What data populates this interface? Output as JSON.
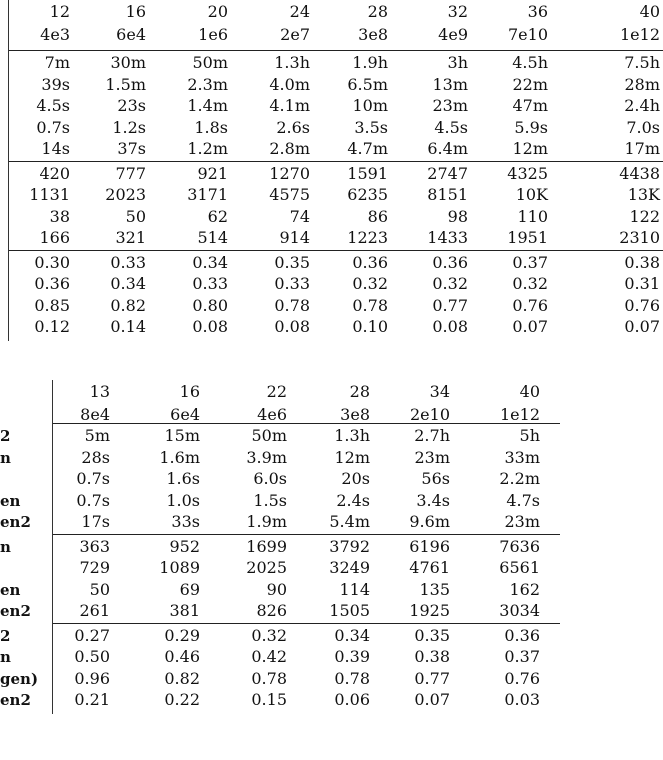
{
  "top_table": {
    "header_row1": [
      "12",
      "16",
      "20",
      "24",
      "28",
      "32",
      "36",
      "40"
    ],
    "header_row2": [
      "4e3",
      "6e4",
      "1e6",
      "2e7",
      "3e8",
      "4e9",
      "7e10",
      "1e12"
    ],
    "groups": [
      [
        [
          "7m",
          "30m",
          "50m",
          "1.3h",
          "1.9h",
          "3h",
          "4.5h",
          "7.5h"
        ],
        [
          "39s",
          "1.5m",
          "2.3m",
          "4.0m",
          "6.5m",
          "13m",
          "22m",
          "28m"
        ],
        [
          "4.5s",
          "23s",
          "1.4m",
          "4.1m",
          "10m",
          "23m",
          "47m",
          "2.4h"
        ],
        [
          "0.7s",
          "1.2s",
          "1.8s",
          "2.6s",
          "3.5s",
          "4.5s",
          "5.9s",
          "7.0s"
        ],
        [
          "14s",
          "37s",
          "1.2m",
          "2.8m",
          "4.7m",
          "6.4m",
          "12m",
          "17m"
        ]
      ],
      [
        [
          "420",
          "777",
          "921",
          "1270",
          "1591",
          "2747",
          "4325",
          "4438"
        ],
        [
          "1131",
          "2023",
          "3171",
          "4575",
          "6235",
          "8151",
          "10K",
          "13K"
        ],
        [
          "38",
          "50",
          "62",
          "74",
          "86",
          "98",
          "110",
          "122"
        ],
        [
          "166",
          "321",
          "514",
          "914",
          "1223",
          "1433",
          "1951",
          "2310"
        ]
      ],
      [
        [
          "0.30",
          "0.33",
          "0.34",
          "0.35",
          "0.36",
          "0.36",
          "0.37",
          "0.38"
        ],
        [
          "0.36",
          "0.34",
          "0.33",
          "0.33",
          "0.32",
          "0.32",
          "0.32",
          "0.31"
        ],
        [
          "0.85",
          "0.82",
          "0.80",
          "0.78",
          "0.78",
          "0.77",
          "0.76",
          "0.76"
        ],
        [
          "0.12",
          "0.14",
          "0.08",
          "0.08",
          "0.10",
          "0.08",
          "0.07",
          "0.07"
        ]
      ]
    ]
  },
  "bottom_table": {
    "header_row1": [
      "13",
      "16",
      "22",
      "28",
      "34",
      "40"
    ],
    "header_row2": [
      "8e4",
      "6e4",
      "4e6",
      "3e8",
      "2e10",
      "1e12"
    ],
    "group_labels": [
      [
        "2",
        "n",
        "",
        "en",
        "en2"
      ],
      [
        "n",
        "",
        "en",
        "en2"
      ],
      [
        "2",
        "n",
        "gen)",
        "en2"
      ]
    ],
    "groups": [
      [
        [
          "5m",
          "15m",
          "50m",
          "1.3h",
          "2.7h",
          "5h"
        ],
        [
          "28s",
          "1.6m",
          "3.9m",
          "12m",
          "23m",
          "33m"
        ],
        [
          "0.7s",
          "1.6s",
          "6.0s",
          "20s",
          "56s",
          "2.2m"
        ],
        [
          "0.7s",
          "1.0s",
          "1.5s",
          "2.4s",
          "3.4s",
          "4.7s"
        ],
        [
          "17s",
          "33s",
          "1.9m",
          "5.4m",
          "9.6m",
          "23m"
        ]
      ],
      [
        [
          "363",
          "952",
          "1699",
          "3792",
          "6196",
          "7636"
        ],
        [
          "729",
          "1089",
          "2025",
          "3249",
          "4761",
          "6561"
        ],
        [
          "50",
          "69",
          "90",
          "114",
          "135",
          "162"
        ],
        [
          "261",
          "381",
          "826",
          "1505",
          "1925",
          "3034"
        ]
      ],
      [
        [
          "0.27",
          "0.29",
          "0.32",
          "0.34",
          "0.35",
          "0.36"
        ],
        [
          "0.50",
          "0.46",
          "0.42",
          "0.39",
          "0.38",
          "0.37"
        ],
        [
          "0.96",
          "0.82",
          "0.78",
          "0.78",
          "0.77",
          "0.76"
        ],
        [
          "0.21",
          "0.22",
          "0.15",
          "0.06",
          "0.07",
          "0.03"
        ]
      ]
    ]
  }
}
